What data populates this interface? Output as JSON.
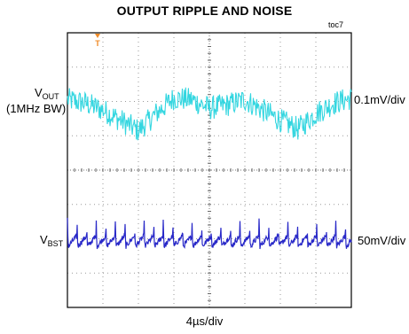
{
  "chart_data": {
    "type": "line",
    "title": "OUTPUT RIPPLE AND NOISE",
    "figure_id": "toc7",
    "xlabel": "4µs/div",
    "x_divisions": 8,
    "y_divisions": 8,
    "grid": true,
    "trigger_marker": "T",
    "series": [
      {
        "name_main": "V",
        "name_sub": "OUT",
        "name_note": "(1MHz BW)",
        "scale": "0.1mV/div",
        "color": "#33d6e0",
        "center_div": 2.0,
        "x_div": [
          0.0,
          0.5,
          1.0,
          1.5,
          2.0,
          2.5,
          3.0,
          3.5,
          4.0,
          4.5,
          5.0,
          5.5,
          6.0,
          6.5,
          7.0,
          7.5,
          8.0
        ],
        "y_div": [
          0.05,
          -0.05,
          -0.25,
          -0.55,
          -0.85,
          -0.35,
          0.1,
          0.05,
          -0.2,
          -0.1,
          0.05,
          -0.25,
          -0.55,
          -0.8,
          -0.35,
          -0.05,
          0.1
        ],
        "noise_div": 0.35
      },
      {
        "name_main": "V",
        "name_sub": "BST",
        "scale": "50mV/div",
        "color": "#2828c8",
        "center_div": 6.0,
        "period_div": 0.27,
        "spike_div": 0.55,
        "sawtooth_div": 0.45,
        "noise_div": 0.08
      }
    ]
  }
}
